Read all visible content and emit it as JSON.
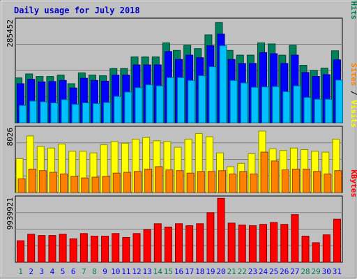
{
  "chart_data": {
    "type": "bar",
    "title": "Daily usage for July 2018",
    "colors": {
      "hits": "#00805c",
      "files": "#0000ff",
      "pages": "#00c0ff",
      "visits": "#ffff00",
      "sites": "#ff8000",
      "kbytes": "#ff0000",
      "weekend_day_label": "#00805c",
      "weekday_label": "#0000ff",
      "panel_background": "#c0c0c0",
      "frame_background": "#c0c0c0"
    },
    "categories": [
      "1",
      "2",
      "3",
      "4",
      "5",
      "6",
      "7",
      "8",
      "9",
      "10",
      "11",
      "12",
      "13",
      "14",
      "15",
      "16",
      "17",
      "18",
      "19",
      "20",
      "21",
      "22",
      "23",
      "24",
      "25",
      "26",
      "27",
      "28",
      "29",
      "30",
      "31"
    ],
    "weekend_days": [
      "1",
      "7",
      "8",
      "14",
      "15",
      "21",
      "22",
      "28",
      "29"
    ],
    "panels": [
      {
        "name": "pages-files-hits",
        "ymax_label": "285452",
        "ymax": 285452,
        "right_label_parts": [
          {
            "text": "Pages",
            "series": "pages"
          },
          {
            "text": " / ",
            "series": "sep"
          },
          {
            "text": "Files",
            "series": "files"
          },
          {
            "text": " / ",
            "series": "sep"
          },
          {
            "text": "Hits",
            "series": "hits"
          }
        ],
        "series": [
          {
            "name": "Hits",
            "key": "hits",
            "values": [
              124000,
              135000,
              128000,
              128000,
              132000,
              108000,
              138000,
              132000,
              130000,
              150000,
              150000,
              182000,
              182000,
              182000,
              221000,
              200000,
              214000,
              205000,
              243000,
              277000,
              200000,
              187000,
              187000,
              221000,
              218000,
              187000,
              214000,
              159000,
              145000,
              151000,
              199000
            ]
          },
          {
            "name": "Files",
            "key": "files",
            "values": [
              108000,
              120000,
              113000,
              114000,
              117000,
              96000,
              123000,
              117000,
              115000,
              132000,
              132000,
              160000,
              160000,
              160000,
              197000,
              175000,
              187000,
              180000,
              213000,
              245000,
              175000,
              164000,
              164000,
              194000,
              191000,
              164000,
              187000,
              139000,
              128000,
              133000,
              174000
            ]
          },
          {
            "name": "Pages",
            "key": "pages",
            "values": [
              48000,
              60000,
              58000,
              55000,
              64000,
              51000,
              55000,
              53000,
              56000,
              73000,
              85000,
              97000,
              105000,
              102000,
              125000,
              125000,
              117000,
              130000,
              155000,
              213000,
              117000,
              110000,
              98000,
              99000,
              100000,
              86000,
              102000,
              70000,
              65000,
              65000,
              118000
            ]
          }
        ]
      },
      {
        "name": "visits-sites",
        "ymax_label": "8026",
        "ymax": 8026,
        "right_label_parts": [
          {
            "text": "Sites",
            "series": "sites"
          },
          {
            "text": " / ",
            "series": "sep"
          },
          {
            "text": "Visits",
            "series": "visits"
          }
        ],
        "series": [
          {
            "name": "Visits",
            "key": "visits",
            "values": [
              4200,
              7000,
              5700,
              5500,
              6000,
              5100,
              5100,
              4900,
              5900,
              6300,
              6100,
              6600,
              6800,
              6400,
              6300,
              5600,
              6600,
              7300,
              6900,
              4900,
              3200,
              3600,
              4800,
              7600,
              5400,
              5200,
              5500,
              5300,
              5100,
              5000,
              6600
            ]
          },
          {
            "name": "Sites",
            "key": "sites",
            "values": [
              1700,
              2900,
              2700,
              2500,
              2300,
              2000,
              1800,
              1900,
              2000,
              2400,
              2500,
              2600,
              2900,
              3200,
              2800,
              2700,
              2400,
              2600,
              2600,
              2700,
              2300,
              2600,
              2300,
              5000,
              3900,
              2800,
              2900,
              2900,
              2600,
              2300,
              2700
            ]
          }
        ]
      },
      {
        "name": "kbytes",
        "ymax_label": "9939921",
        "ymax": 9939921,
        "right_label_parts": [
          {
            "text": "KBytes",
            "series": "kbytes"
          }
        ],
        "series": [
          {
            "name": "KBytes",
            "key": "kbytes",
            "values": [
              3300000,
              4300000,
              4100000,
              4100000,
              4300000,
              3600000,
              4400000,
              4000000,
              4000000,
              4400000,
              3800000,
              4400000,
              5000000,
              5900000,
              5400000,
              5900000,
              5600000,
              5900000,
              7600000,
              9800000,
              6000000,
              5700000,
              5600000,
              5800000,
              6100000,
              5800000,
              7300000,
              4000000,
              3000000,
              4200000,
              6600000
            ]
          }
        ]
      }
    ]
  }
}
